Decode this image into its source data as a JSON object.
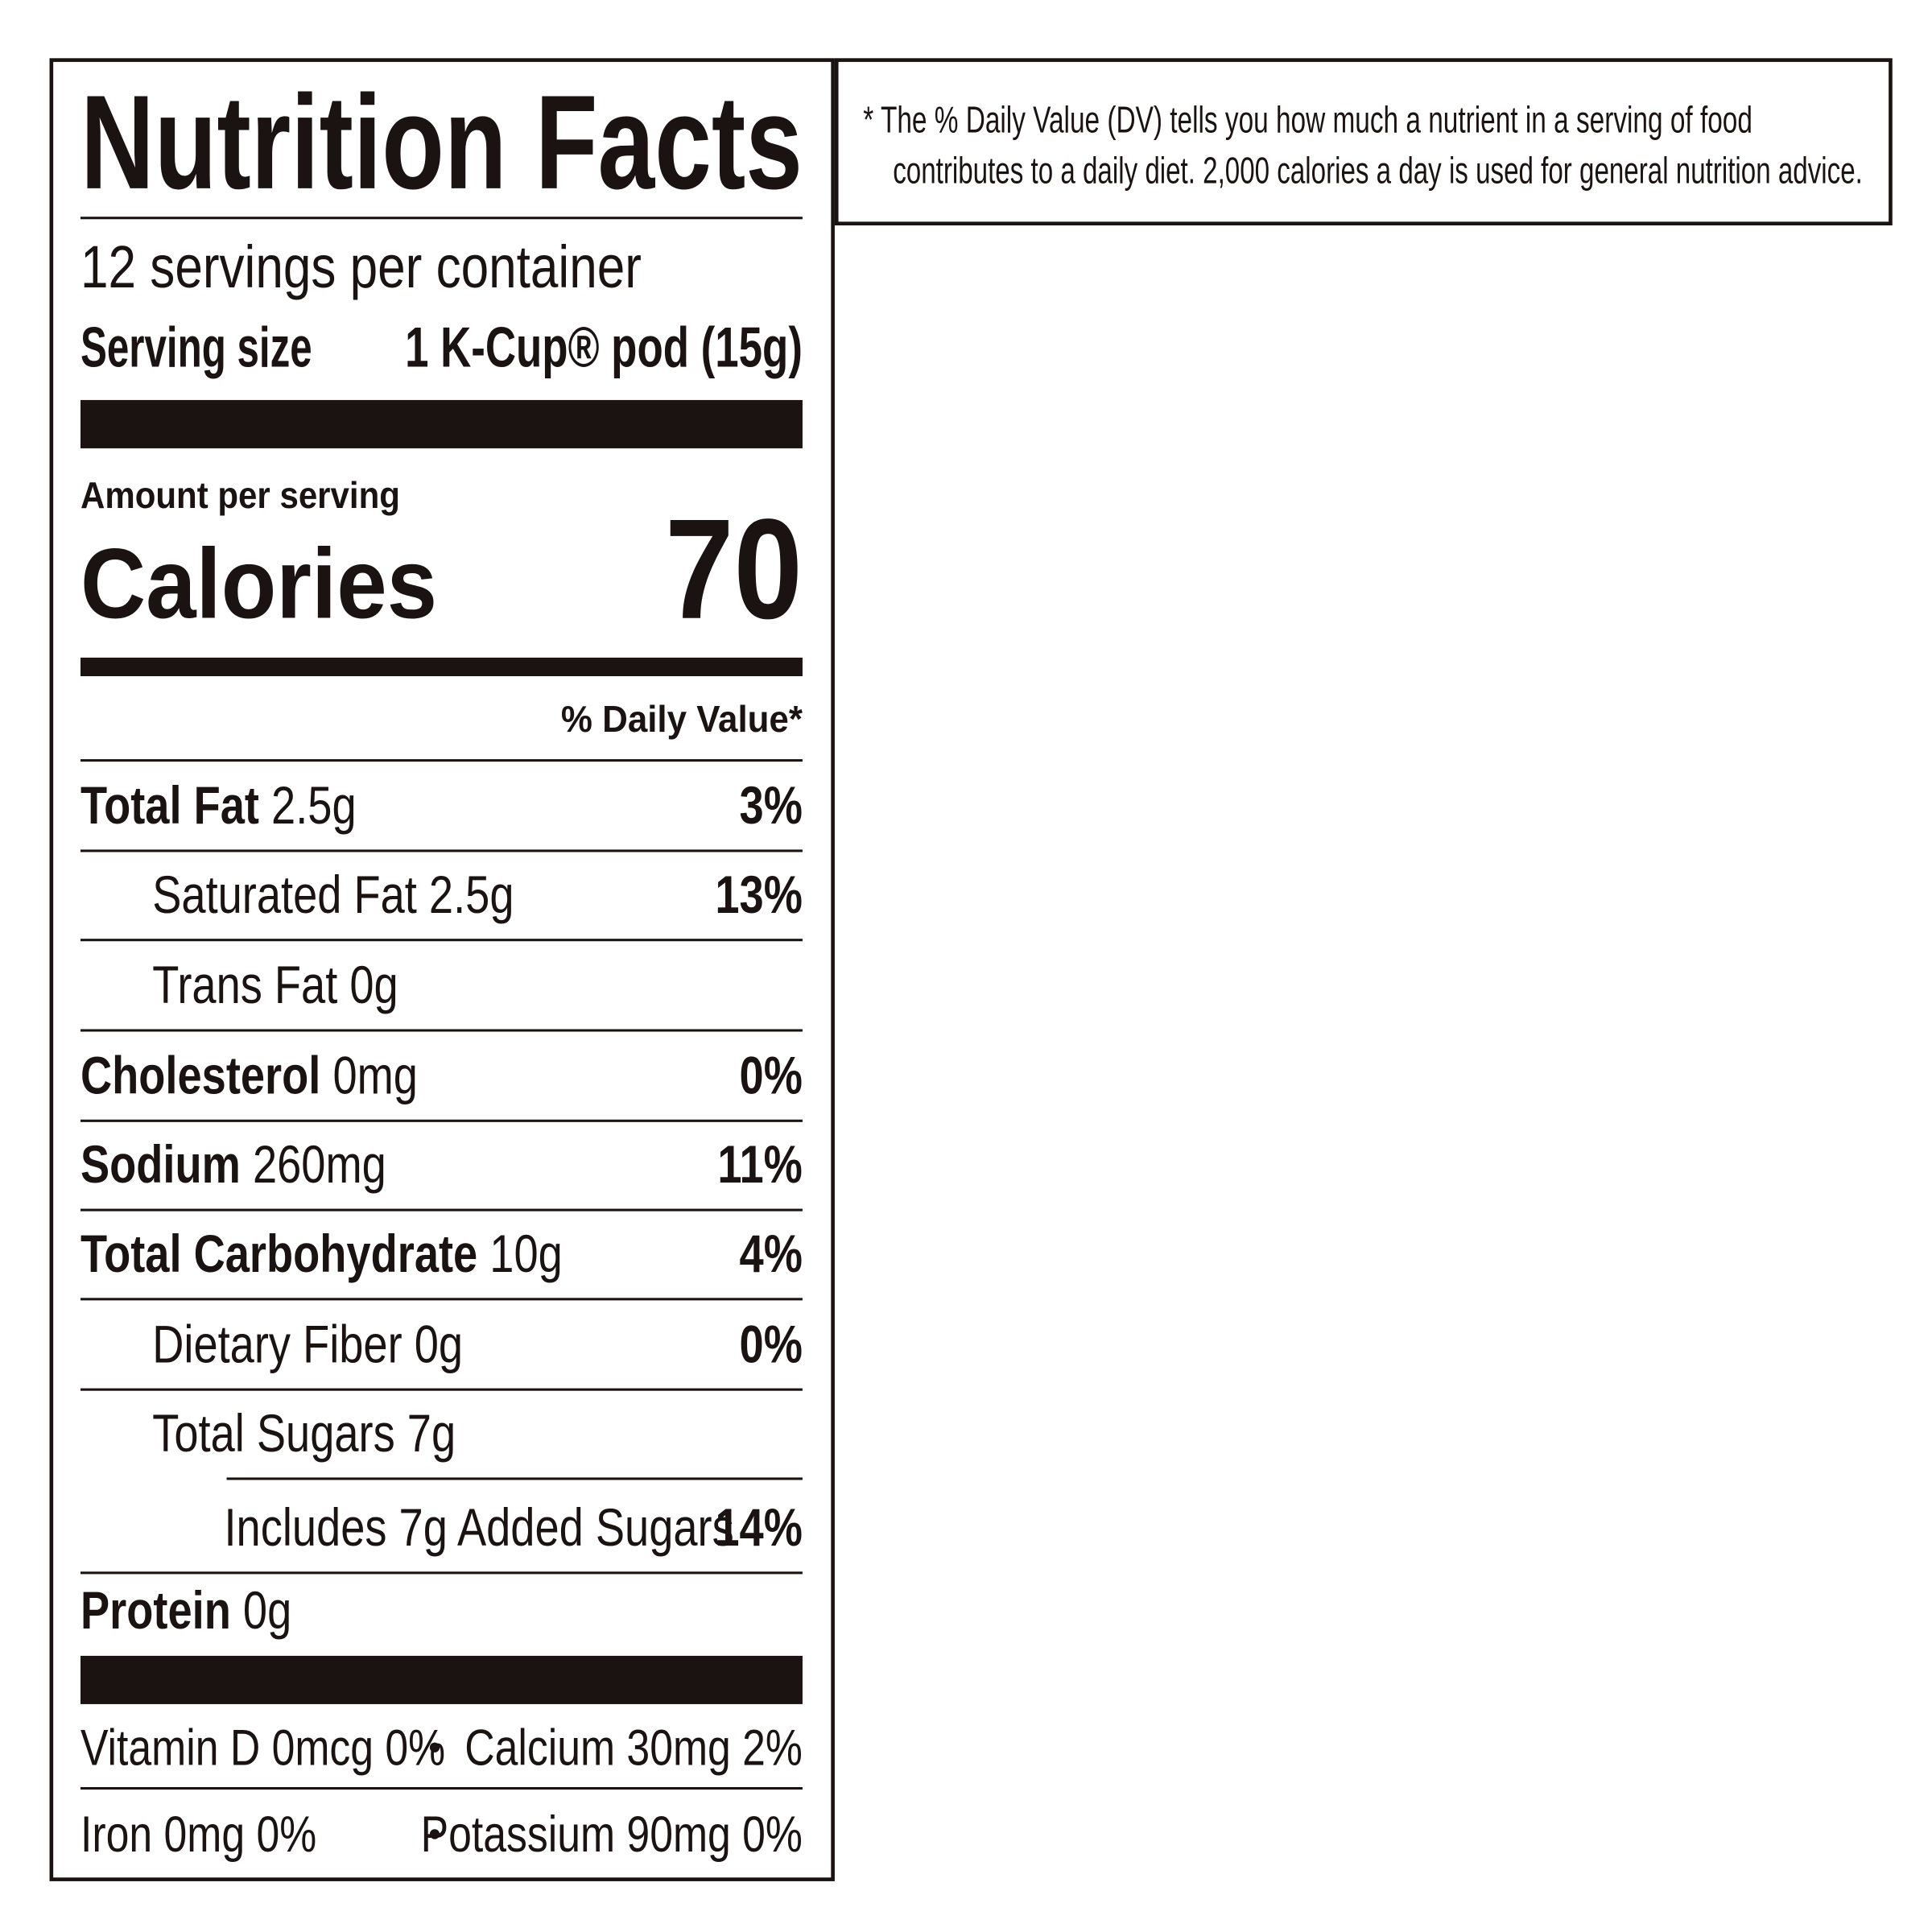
{
  "label": {
    "title": "Nutrition Facts",
    "servings_per_container": "12 servings per container",
    "serving_size_label": "Serving size",
    "serving_size_value": "1 K-Cup® pod (15g)",
    "amount_per_serving": "Amount per serving",
    "calories_label": "Calories",
    "calories_value": "70",
    "daily_value_header": "% Daily Value*",
    "rows": [
      {
        "name": "Total Fat",
        "amount": "2.5g",
        "dv": "3%"
      },
      {
        "name": "Saturated Fat",
        "amount": "2.5g",
        "dv": "13%"
      },
      {
        "name": "Trans Fat",
        "amount": "0g"
      },
      {
        "name": "Cholesterol",
        "amount": "0mg",
        "dv": "0%"
      },
      {
        "name": "Sodium",
        "amount": "260mg",
        "dv": "11%"
      },
      {
        "name": "Total Carbohydrate",
        "amount": "10g",
        "dv": "4%"
      },
      {
        "name": "Dietary Fiber",
        "amount": "0g",
        "dv": "0%"
      },
      {
        "name": "Total Sugars",
        "amount": "7g"
      },
      {
        "name": "Includes 7g Added Sugars",
        "dv": "14%"
      },
      {
        "name": "Protein",
        "amount": "0g"
      }
    ],
    "vitamins": [
      [
        "Vitamin D 0mcg 0%",
        "Calcium 30mg 2%"
      ],
      [
        "Iron 0mg 0%",
        "Potassium 90mg 0%"
      ]
    ]
  },
  "footnote": [
    "* The % Daily Value (DV) tells you how much a nutrient in a serving of food",
    "contributes to a daily diet. 2,000 calories a day is used for general nutrition advice."
  ]
}
